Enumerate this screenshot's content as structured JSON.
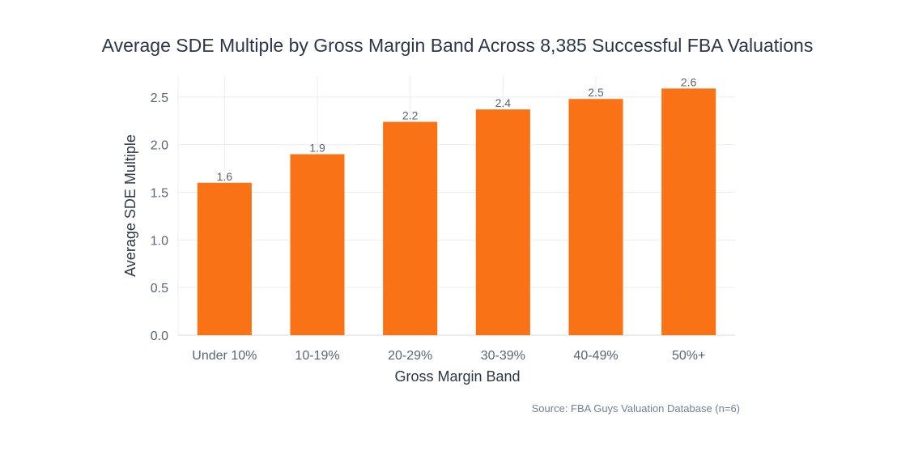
{
  "chart_data": {
    "type": "bar",
    "title": "Average SDE Multiple by Gross Margin Band Across 8,385 Successful FBA Valuations",
    "xlabel": "Gross Margin Band",
    "ylabel": "Average SDE Multiple",
    "categories": [
      "Under 10%",
      "10-19%",
      "20-29%",
      "30-39%",
      "40-49%",
      "50%+"
    ],
    "values": [
      1.6,
      1.9,
      2.24,
      2.37,
      2.48,
      2.59
    ],
    "data_labels": [
      "1.6",
      "1.9",
      "2.2",
      "2.4",
      "2.5",
      "2.6"
    ],
    "ylim": [
      0,
      2.72
    ],
    "yticks": [
      "0.0",
      "0.5",
      "1.0",
      "1.5",
      "2.0",
      "2.5"
    ],
    "grid": true,
    "bar_color": "#F97316",
    "source": "Source: FBA Guys Valuation Database (n=6)"
  }
}
